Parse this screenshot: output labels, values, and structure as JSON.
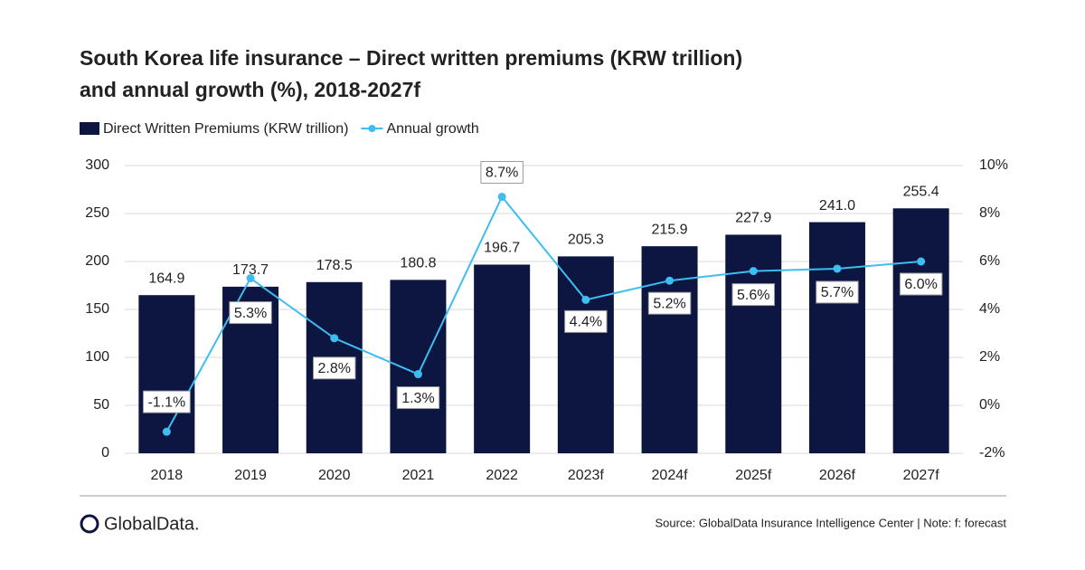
{
  "chart_data": {
    "type": "bar_line",
    "title": "South Korea life insurance – Direct written premiums (KRW trillion)",
    "title_line2": "and annual growth (%), 2018-2027f",
    "categories": [
      "2018",
      "2019",
      "2020",
      "2021",
      "2022",
      "2023f",
      "2024f",
      "2025f",
      "2026f",
      "2027f"
    ],
    "series": [
      {
        "name": "Direct Written Premiums (KRW trillion)",
        "color": "#0c1641",
        "type": "bar",
        "values": [
          164.9,
          173.7,
          178.5,
          180.8,
          196.7,
          205.3,
          215.9,
          227.9,
          241.0,
          255.4
        ],
        "value_labels": [
          "164.9",
          "173.7",
          "178.5",
          "180.8",
          "196.7",
          "205.3",
          "215.9",
          "227.9",
          "241.0",
          "255.4"
        ]
      },
      {
        "name": "Annual growth",
        "color": "#3dbdf0",
        "type": "line",
        "axis": "y2",
        "values": [
          -1.1,
          5.3,
          2.8,
          1.3,
          8.7,
          4.4,
          5.2,
          5.6,
          5.7,
          6.0
        ],
        "value_labels": [
          "-1.1%",
          "5.3%",
          "2.8%",
          "1.3%",
          "8.7%",
          "4.4%",
          "5.2%",
          "5.6%",
          "5.7%",
          "6.0%"
        ]
      }
    ],
    "ylim": [
      0,
      300
    ],
    "yticks": [
      0,
      50,
      100,
      150,
      200,
      250,
      300
    ],
    "y2lim": [
      -2,
      10
    ],
    "y2ticks": [
      {
        "value": -2,
        "label": "-2%"
      },
      {
        "value": 0,
        "label": "0%"
      },
      {
        "value": 2,
        "label": "2%"
      },
      {
        "value": 4,
        "label": "4%"
      },
      {
        "value": 6,
        "label": "6%"
      },
      {
        "value": 8,
        "label": "8%"
      },
      {
        "value": 10,
        "label": "10%"
      }
    ],
    "grid": true,
    "source": "Source: GlobalData Insurance Intelligence Center | Note: f: forecast",
    "brand": "GlobalData."
  }
}
